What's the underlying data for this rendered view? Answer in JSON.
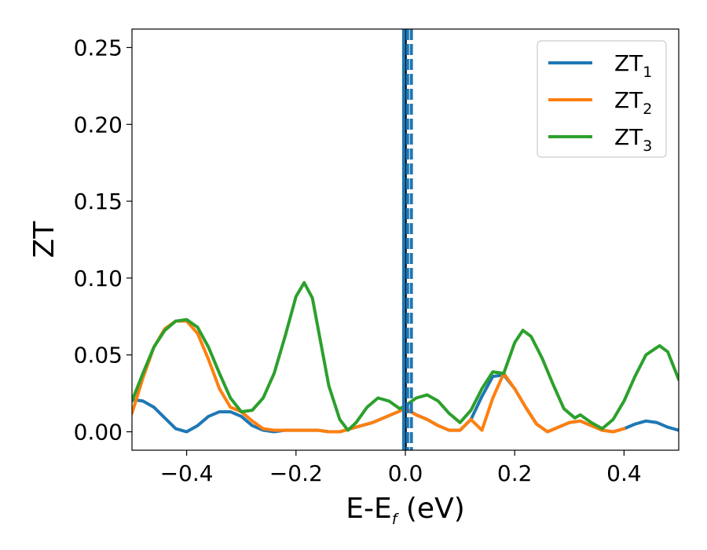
{
  "chart_data": {
    "type": "line",
    "xlabel": {
      "base": "E-E",
      "sub": "f",
      "unit": " (eV)"
    },
    "ylabel": "ZT",
    "xlim": [
      -0.5,
      0.5
    ],
    "ylim": [
      -0.012,
      0.262
    ],
    "xticks": [
      -0.4,
      -0.2,
      0.0,
      0.2,
      0.4
    ],
    "xtick_labels": [
      "−0.4",
      "−0.2",
      "0.0",
      "0.2",
      "0.4"
    ],
    "yticks": [
      0.0,
      0.05,
      0.1,
      0.15,
      0.2,
      0.25
    ],
    "ytick_labels": [
      "0.00",
      "0.05",
      "0.10",
      "0.15",
      "0.20",
      "0.25"
    ],
    "grid": false,
    "legend_position": "top-right",
    "vertical_lines": [
      {
        "x": 0.0,
        "color": "#000000",
        "style": "solid"
      },
      {
        "x": -0.003,
        "color": "#1f77b4",
        "style": "solid"
      },
      {
        "x": 0.004,
        "color": "#1f77b4",
        "style": "dashed"
      },
      {
        "x": 0.011,
        "color": "#1f77b4",
        "style": "dashed"
      }
    ],
    "series": [
      {
        "name": "ZT",
        "name_sub": "1",
        "color": "#1f77b4",
        "x": [
          -0.5,
          -0.48,
          -0.46,
          -0.44,
          -0.42,
          -0.4,
          -0.38,
          -0.36,
          -0.34,
          -0.32,
          -0.3,
          -0.28,
          -0.26,
          -0.24,
          -0.22,
          -0.2,
          -0.18,
          -0.16,
          -0.14,
          -0.12,
          -0.1,
          -0.08,
          -0.06,
          -0.04,
          -0.02,
          0.0,
          0.02,
          0.04,
          0.06,
          0.08,
          0.1,
          0.12,
          0.14,
          0.16,
          0.18,
          0.2,
          0.22,
          0.24,
          0.26,
          0.28,
          0.3,
          0.32,
          0.34,
          0.36,
          0.38,
          0.4,
          0.42,
          0.44,
          0.46,
          0.48,
          0.5
        ],
        "y": [
          0.021,
          0.02,
          0.016,
          0.009,
          0.002,
          0.0,
          0.004,
          0.01,
          0.013,
          0.013,
          0.01,
          0.004,
          0.001,
          0.0,
          0.001,
          0.001,
          0.001,
          0.001,
          0.0,
          0.0,
          0.002,
          0.004,
          0.006,
          0.009,
          0.012,
          0.015,
          0.011,
          0.008,
          0.004,
          0.001,
          0.001,
          0.008,
          0.023,
          0.036,
          0.037,
          0.028,
          0.016,
          0.005,
          0.0,
          0.003,
          0.006,
          0.007,
          0.004,
          0.001,
          0.0,
          0.002,
          0.005,
          0.007,
          0.006,
          0.003,
          0.001
        ]
      },
      {
        "name": "ZT",
        "name_sub": "2",
        "color": "#ff7f0e",
        "x": [
          -0.5,
          -0.48,
          -0.46,
          -0.44,
          -0.42,
          -0.4,
          -0.38,
          -0.36,
          -0.34,
          -0.32,
          -0.3,
          -0.28,
          -0.26,
          -0.24,
          -0.22,
          -0.2,
          -0.18,
          -0.16,
          -0.14,
          -0.12,
          -0.1,
          -0.08,
          -0.06,
          -0.04,
          -0.02,
          0.0,
          0.02,
          0.04,
          0.06,
          0.08,
          0.1,
          0.12,
          0.14,
          0.16,
          0.18,
          0.2,
          0.22,
          0.24,
          0.26,
          0.28,
          0.3,
          0.32,
          0.34,
          0.36,
          0.38,
          0.4
        ],
        "y": [
          0.012,
          0.035,
          0.055,
          0.067,
          0.072,
          0.072,
          0.064,
          0.047,
          0.028,
          0.016,
          0.013,
          0.007,
          0.002,
          0.001,
          0.001,
          0.001,
          0.001,
          0.001,
          0.0,
          0.0,
          0.002,
          0.004,
          0.006,
          0.009,
          0.012,
          0.015,
          0.011,
          0.008,
          0.004,
          0.001,
          0.001,
          0.008,
          0.001,
          0.022,
          0.038,
          0.028,
          0.016,
          0.005,
          0.0,
          0.003,
          0.006,
          0.007,
          0.004,
          0.001,
          0.0,
          0.002
        ]
      },
      {
        "name": "ZT",
        "name_sub": "3",
        "color": "#2ca02c",
        "x": [
          -0.5,
          -0.48,
          -0.46,
          -0.44,
          -0.42,
          -0.4,
          -0.38,
          -0.36,
          -0.34,
          -0.32,
          -0.3,
          -0.28,
          -0.26,
          -0.24,
          -0.22,
          -0.2,
          -0.185,
          -0.17,
          -0.16,
          -0.14,
          -0.12,
          -0.105,
          -0.09,
          -0.07,
          -0.05,
          -0.03,
          -0.01,
          0.0,
          0.02,
          0.04,
          0.06,
          0.08,
          0.1,
          0.12,
          0.14,
          0.16,
          0.18,
          0.2,
          0.215,
          0.23,
          0.25,
          0.27,
          0.29,
          0.31,
          0.32,
          0.34,
          0.36,
          0.38,
          0.4,
          0.42,
          0.44,
          0.465,
          0.48,
          0.5
        ],
        "y": [
          0.02,
          0.038,
          0.055,
          0.066,
          0.072,
          0.073,
          0.068,
          0.055,
          0.038,
          0.022,
          0.013,
          0.014,
          0.022,
          0.038,
          0.062,
          0.088,
          0.097,
          0.087,
          0.068,
          0.03,
          0.008,
          0.001,
          0.006,
          0.016,
          0.022,
          0.02,
          0.015,
          0.017,
          0.022,
          0.024,
          0.02,
          0.012,
          0.006,
          0.014,
          0.028,
          0.039,
          0.038,
          0.058,
          0.066,
          0.062,
          0.048,
          0.031,
          0.015,
          0.009,
          0.011,
          0.006,
          0.002,
          0.008,
          0.02,
          0.036,
          0.05,
          0.056,
          0.052,
          0.034
        ]
      }
    ]
  }
}
